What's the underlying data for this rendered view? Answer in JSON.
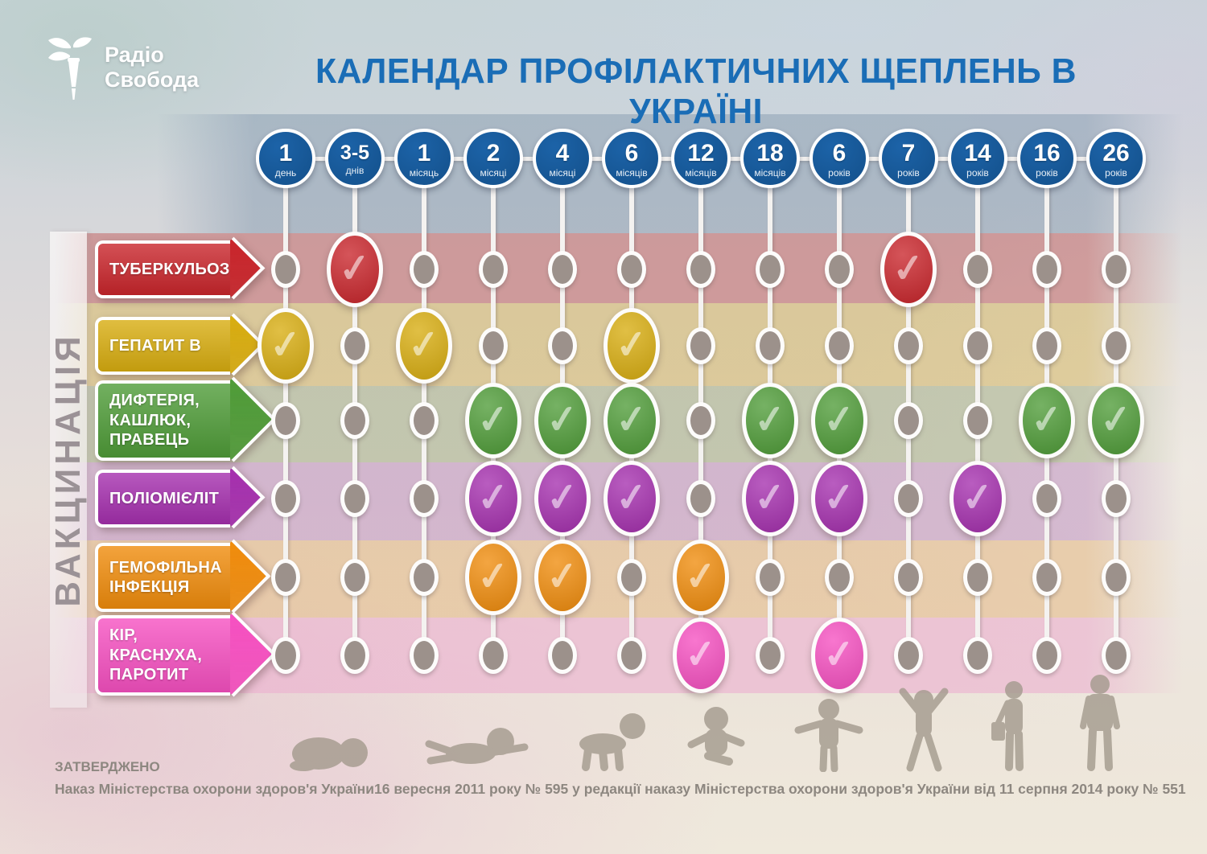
{
  "header": {
    "logo_line1": "Радіо",
    "logo_line2": "Свобода",
    "title": "КАЛЕНДАР ПРОФІЛАКТИЧНИХ ЩЕПЛЕНЬ В УКРАЇНІ",
    "title_color": "#1a6db6"
  },
  "sidebar_label": "ВАКЦИНАЦІЯ",
  "timeline": {
    "node_color": "#1c63a8",
    "band_color": "#94a6b8",
    "columns": [
      {
        "value": "1",
        "unit": "день"
      },
      {
        "value": "3-5",
        "unit": "днів"
      },
      {
        "value": "1",
        "unit": "місяць"
      },
      {
        "value": "2",
        "unit": "місяці"
      },
      {
        "value": "4",
        "unit": "місяці"
      },
      {
        "value": "6",
        "unit": "місяців"
      },
      {
        "value": "12",
        "unit": "місяців"
      },
      {
        "value": "18",
        "unit": "місяців"
      },
      {
        "value": "6",
        "unit": "років"
      },
      {
        "value": "7",
        "unit": "років"
      },
      {
        "value": "14",
        "unit": "років"
      },
      {
        "value": "16",
        "unit": "років"
      },
      {
        "value": "26",
        "unit": "років"
      }
    ]
  },
  "dot_color": "#9c918b",
  "check_glyph": "✓",
  "rows": [
    {
      "id": "tuberculosis",
      "label_lines": [
        "ТУБЕРКУЛЬОЗ"
      ],
      "color": "#c9252b",
      "band": "#c67474",
      "checks": [
        1,
        9
      ]
    },
    {
      "id": "hepatitis-b",
      "label_lines": [
        "ГЕПАТИТ В"
      ],
      "color": "#d8ad10",
      "band": "#d8be74",
      "checks": [
        0,
        2,
        5
      ]
    },
    {
      "id": "diphtheria-pertussis-tetanus",
      "label_lines": [
        "ДИФТЕРІЯ,",
        "КАШЛЮК,",
        "ПРАВЕЦЬ"
      ],
      "color": "#4f9c38",
      "band": "#aeb894",
      "checks": [
        3,
        4,
        5,
        7,
        8,
        11,
        12
      ]
    },
    {
      "id": "poliomyelitis",
      "label_lines": [
        "ПОЛІОМІЄЛІТ"
      ],
      "color": "#a52fae",
      "band": "#c69ec6",
      "checks": [
        3,
        4,
        5,
        7,
        8,
        10
      ]
    },
    {
      "id": "haemophilus-infection",
      "label_lines": [
        "ГЕМОФІЛЬНА",
        "ІНФЕКЦІЯ"
      ],
      "color": "#f08c0c",
      "band": "#e5be8e",
      "checks": [
        3,
        4,
        6
      ]
    },
    {
      "id": "measles-rubella-mumps",
      "label_lines": [
        "КІР,",
        "КРАСНУХА,",
        "ПАРОТИТ"
      ],
      "color": "#f650c1",
      "band": "#ecb1d0",
      "checks": [
        6,
        8
      ]
    }
  ],
  "footer": {
    "approved": "ЗАТВЕРДЖЕНО",
    "order": "Наказ Міністерства охорони здоров'я України16 вересня 2011 року № 595 у редакції наказу Міністерства охорони здоров'я України від 11 серпня 2014 року № 551"
  },
  "silhouettes": [
    "newborn",
    "crawling-baby",
    "crawling-toddler",
    "sitting-toddler",
    "standing-toddler",
    "jumping-child",
    "teenager",
    "adult"
  ],
  "chart_data": {
    "type": "table",
    "title": "КАЛЕНДАР ПРОФІЛАКТИЧНИХ ЩЕПЛЕНЬ В УКРАЇНІ",
    "columns": [
      "1 день",
      "3-5 днів",
      "1 місяць",
      "2 місяці",
      "4 місяці",
      "6 місяців",
      "12 місяців",
      "18 місяців",
      "6 років",
      "7 років",
      "14 років",
      "16 років",
      "26 років"
    ],
    "rows": [
      {
        "name": "ТУБЕРКУЛЬОЗ",
        "checked": [
          "3-5 днів",
          "7 років"
        ]
      },
      {
        "name": "ГЕПАТИТ В",
        "checked": [
          "1 день",
          "1 місяць",
          "6 місяців"
        ]
      },
      {
        "name": "ДИФТЕРІЯ, КАШЛЮК, ПРАВЕЦЬ",
        "checked": [
          "2 місяці",
          "4 місяці",
          "6 місяців",
          "18 місяців",
          "6 років",
          "16 років",
          "26 років"
        ]
      },
      {
        "name": "ПОЛІОМІЄЛІТ",
        "checked": [
          "2 місяці",
          "4 місяці",
          "6 місяців",
          "18 місяців",
          "6 років",
          "14 років"
        ]
      },
      {
        "name": "ГЕМОФІЛЬНА ІНФЕКЦІЯ",
        "checked": [
          "2 місяці",
          "4 місяці",
          "12 місяців"
        ]
      },
      {
        "name": "КІР, КРАСНУХА, ПАРОТИТ",
        "checked": [
          "12 місяців",
          "6 років"
        ]
      }
    ],
    "legend_position": "none",
    "grid": false
  }
}
